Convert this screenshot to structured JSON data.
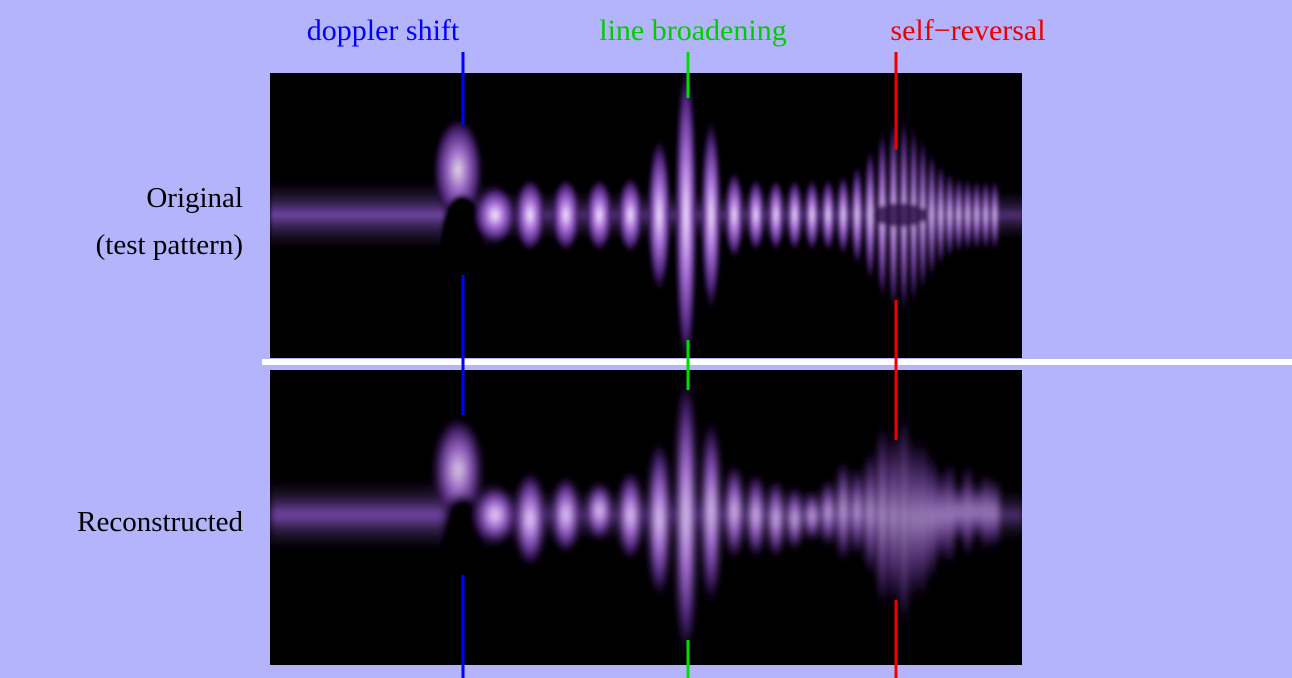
{
  "annotations": {
    "doppler_shift": "doppler shift",
    "line_broadening": "line broadening",
    "self_reversal": "self−reversal"
  },
  "rows": {
    "original": [
      "Original",
      "(test pattern)"
    ],
    "reconstructed": "Reconstructed"
  }
}
